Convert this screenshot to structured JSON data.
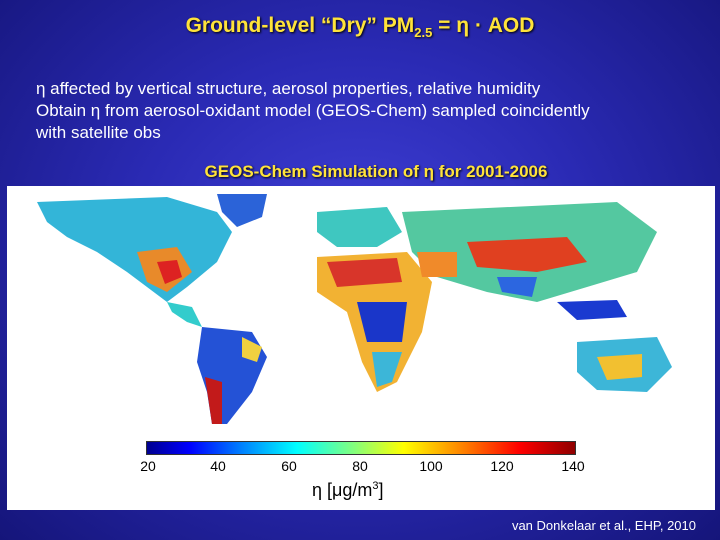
{
  "title": {
    "prefix": "Ground-level “Dry” PM",
    "subscript": "2.5",
    "suffix": " = η · AOD"
  },
  "bullets": [
    "η affected by vertical structure, aerosol properties, relative humidity",
    "Obtain η from aerosol-oxidant model (GEOS-Chem) sampled coincidently",
    "with satellite obs"
  ],
  "subtitle": "GEOS-Chem Simulation of η for 2001-2006",
  "colorbar": {
    "ticks": [
      "20",
      "40",
      "60",
      "80",
      "100",
      "120",
      "140"
    ],
    "label_main": "η [μg/m",
    "label_sup": "3",
    "label_end": "]"
  },
  "citation": "van Donkelaar et al., EHP, 2010",
  "colors": {
    "title": "#ffe33a",
    "background": "#2a2ab4"
  }
}
